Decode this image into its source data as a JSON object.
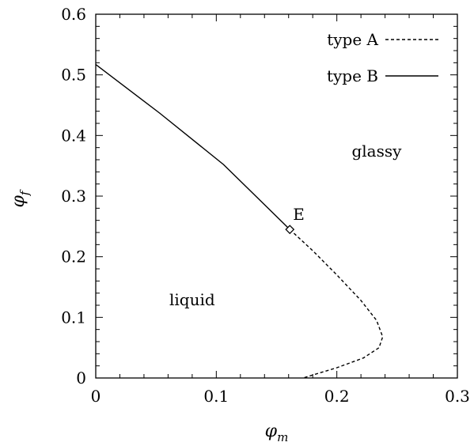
{
  "chart_data": {
    "type": "line",
    "xlabel": "φm",
    "ylabel": "φf",
    "xlim": [
      0,
      0.3
    ],
    "ylim": [
      0,
      0.6
    ],
    "x_ticks": [
      "0",
      "0.1",
      "0.2",
      "0.3"
    ],
    "y_ticks": [
      "0",
      "0.1",
      "0.2",
      "0.3",
      "0.4",
      "0.5",
      "0.6"
    ],
    "legend_position": "top-right",
    "grid": false,
    "series": [
      {
        "name": "type A",
        "style": "dashed",
        "color": "#000000",
        "points": [
          [
            0.161,
            0.245
          ],
          [
            0.18,
            0.21
          ],
          [
            0.2,
            0.17
          ],
          [
            0.22,
            0.128
          ],
          [
            0.233,
            0.095
          ],
          [
            0.238,
            0.068
          ],
          [
            0.235,
            0.05
          ],
          [
            0.222,
            0.033
          ],
          [
            0.2,
            0.017
          ],
          [
            0.185,
            0.008
          ],
          [
            0.172,
            0.0
          ]
        ]
      },
      {
        "name": "type B",
        "style": "solid",
        "color": "#000000",
        "points": [
          [
            0.0,
            0.517
          ],
          [
            0.053,
            0.437
          ],
          [
            0.106,
            0.352
          ],
          [
            0.161,
            0.245
          ]
        ]
      }
    ],
    "marker": {
      "label": "E",
      "x": 0.161,
      "y": 0.245,
      "shape": "diamond"
    },
    "region_labels": [
      {
        "text": "glassy",
        "x": 0.233,
        "y": 0.365
      },
      {
        "text": "liquid",
        "x": 0.08,
        "y": 0.12
      }
    ]
  }
}
